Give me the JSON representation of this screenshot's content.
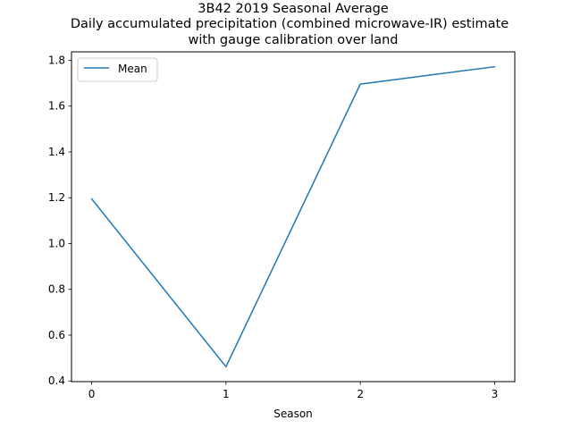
{
  "chart_data": {
    "type": "line",
    "title_lines": [
      "3B42 2019 Seasonal Average",
      "Daily accumulated precipitation (combined microwave-IR) estimate",
      "with  gauge calibration over land"
    ],
    "xlabel": "Season",
    "ylabel": "",
    "x": [
      0,
      1,
      2,
      3
    ],
    "series": [
      {
        "name": "Mean",
        "color": "#1f77b4",
        "values": [
          1.195,
          0.462,
          1.696,
          1.772
        ]
      }
    ],
    "xlim": [
      -0.15,
      3.15
    ],
    "ylim": [
      0.397,
      1.837
    ],
    "xticks": [
      0,
      1,
      2,
      3
    ],
    "xtick_labels": [
      "0",
      "1",
      "2",
      "3"
    ],
    "yticks": [
      0.4,
      0.6,
      0.8,
      1.0,
      1.2,
      1.4,
      1.6,
      1.8
    ],
    "ytick_labels": [
      "0.4",
      "0.6",
      "0.8",
      "1.0",
      "1.2",
      "1.4",
      "1.6",
      "1.8"
    ],
    "grid": false,
    "legend_position": "upper-left"
  }
}
